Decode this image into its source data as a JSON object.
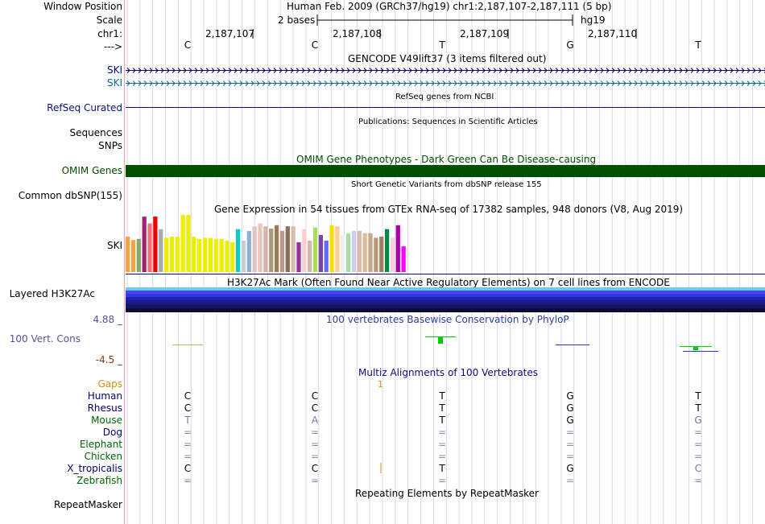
{
  "labels": {
    "window_position": "Window Position",
    "scale": "Scale",
    "chr": "chr1:",
    "strand": "--->",
    "ski1": "SKI",
    "ski2": "SKI",
    "refseq": "RefSeq Curated",
    "sequences": "Sequences",
    "snps": "SNPs",
    "omim": "OMIM Genes",
    "common_dbsnp": "Common dbSNP(155)",
    "gtex_ski": "SKI",
    "layered": "Layered H3K27Ac",
    "phylop_max": "4.88 _",
    "phylop_name": "100 Vert. Cons",
    "phylop_min": "-4.5 _",
    "repeatmasker": "RepeatMasker"
  },
  "header": {
    "assembly": "Human Feb. 2009 (GRCh37/hg19)   chr1:2,187,107-2,187,111 (5 bp)",
    "scale_text": "2 bases",
    "db": "hg19",
    "positions": [
      "2,187,107",
      "2,187,108",
      "2,187,109",
      "2,187,110"
    ],
    "bases": [
      "C",
      "C",
      "T",
      "G",
      "T"
    ]
  },
  "tracks": {
    "gencode": "GENCODE V49lift37 (3 items filtered out)",
    "refseq_title": "RefSeq genes from NCBI",
    "publications": "Publications: Sequences in Scientific Articles",
    "omim_title": "OMIM Gene Phenotypes - Dark Green Can Be Disease-causing",
    "dbsnp_title": "Short Genetic Variants from dbSNP release 155",
    "gtex_title": "Gene Expression in 54 tissues from GTEx RNA-seq of 17382 samples, 948 donors (V8, Aug 2019)",
    "h3k27_title": "H3K27Ac Mark (Often Found Near Active Regulatory Elements) on 7 cell lines from ENCODE",
    "phylop_title": "100 vertebrates Basewise Conservation by PhyloP",
    "multiz_title": "Multiz Alignments of 100 Vertebrates",
    "repeat_title": "Repeating Elements by RepeatMasker"
  },
  "gtex_bars": [
    {
      "v": 0.62,
      "c": "#F2A245"
    },
    {
      "v": 0.56,
      "c": "#F2A245"
    },
    {
      "v": 0.58,
      "c": "#89A86F"
    },
    {
      "v": 0.97,
      "c": "#A0226E"
    },
    {
      "v": 0.85,
      "c": "#F56F6F"
    },
    {
      "v": 0.97,
      "c": "#EE0000"
    },
    {
      "v": 0.75,
      "c": "#AAAAAA"
    },
    {
      "v": 0.6,
      "c": "#EEEE00"
    },
    {
      "v": 0.62,
      "c": "#EEEE00"
    },
    {
      "v": 0.62,
      "c": "#EEEE00"
    },
    {
      "v": 1.0,
      "c": "#EEEE00"
    },
    {
      "v": 1.0,
      "c": "#EEEE00"
    },
    {
      "v": 0.62,
      "c": "#EEEE00"
    },
    {
      "v": 0.58,
      "c": "#EEEE00"
    },
    {
      "v": 0.6,
      "c": "#EEEE00"
    },
    {
      "v": 0.6,
      "c": "#EEEE00"
    },
    {
      "v": 0.58,
      "c": "#EEEE00"
    },
    {
      "v": 0.58,
      "c": "#EEEE00"
    },
    {
      "v": 0.55,
      "c": "#EEEE00"
    },
    {
      "v": 0.52,
      "c": "#EEEE00"
    },
    {
      "v": 0.75,
      "c": "#00CCCC"
    },
    {
      "v": 0.55,
      "c": "#CCCCCC"
    },
    {
      "v": 0.72,
      "c": "#8FB0D6"
    },
    {
      "v": 0.8,
      "c": "#E0C8C0"
    },
    {
      "v": 0.85,
      "c": "#E8C4BC"
    },
    {
      "v": 0.8,
      "c": "#D8B0A8"
    },
    {
      "v": 0.76,
      "c": "#AA9977"
    },
    {
      "v": 0.82,
      "c": "#9C7A55"
    },
    {
      "v": 0.72,
      "c": "#BB9988"
    },
    {
      "v": 0.8,
      "c": "#8C6E50"
    },
    {
      "v": 0.8,
      "c": "#DDBBAA"
    },
    {
      "v": 0.52,
      "c": "#9B30A0"
    },
    {
      "v": 0.75,
      "c": "#FFCCCC"
    },
    {
      "v": 0.55,
      "c": "#CCBBAA"
    },
    {
      "v": 0.78,
      "c": "#AADD55"
    },
    {
      "v": 0.65,
      "c": "#7744AA"
    },
    {
      "v": 0.55,
      "c": "#6666FF"
    },
    {
      "v": 0.82,
      "c": "#FFDD00"
    },
    {
      "v": 0.8,
      "c": "#FFCC99"
    },
    {
      "v": 0.65,
      "c": "#EEEEEE"
    },
    {
      "v": 0.68,
      "c": "#AADDAA"
    },
    {
      "v": 0.72,
      "c": "#CCCCEE"
    },
    {
      "v": 0.72,
      "c": "#DDBBAA"
    },
    {
      "v": 0.68,
      "c": "#DDBB99"
    },
    {
      "v": 0.68,
      "c": "#C8A888"
    },
    {
      "v": 0.6,
      "c": "#BB9977"
    },
    {
      "v": 0.62,
      "c": "#A08060"
    },
    {
      "v": 0.75,
      "c": "#008844"
    },
    {
      "v": 0.6,
      "c": "#FFCCDD"
    },
    {
      "v": 0.82,
      "c": "#AA00AA"
    },
    {
      "v": 0.45,
      "c": "#FF00FF"
    }
  ],
  "multiz": {
    "gaps_label": "Gaps",
    "gaps_mark": "1",
    "species": [
      {
        "name": "Human",
        "color": "#000066",
        "bases": [
          "C",
          "C",
          "T",
          "G",
          "T"
        ],
        "base_colors": [
          "#000",
          "#000",
          "#000",
          "#000",
          "#000"
        ]
      },
      {
        "name": "Rhesus",
        "color": "#000066",
        "bases": [
          "C",
          "C",
          "T",
          "G",
          "T"
        ],
        "base_colors": [
          "#000",
          "#000",
          "#000",
          "#000",
          "#000"
        ]
      },
      {
        "name": "Mouse",
        "color": "#006600",
        "bases": [
          "T",
          "A",
          "T",
          "G",
          "G"
        ],
        "base_colors": [
          "#7777AA",
          "#7777AA",
          "#000",
          "#000",
          "#7777AA"
        ]
      },
      {
        "name": "Dog",
        "color": "#000066",
        "bases": [
          "=",
          "=",
          "=",
          "=",
          "="
        ],
        "base_colors": [
          "#8888AA",
          "#8888AA",
          "#8888AA",
          "#8888AA",
          "#8888AA"
        ]
      },
      {
        "name": "Elephant",
        "color": "#006600",
        "bases": [
          "=",
          "=",
          "=",
          "=",
          "="
        ],
        "base_colors": [
          "#8888AA",
          "#8888AA",
          "#8888AA",
          "#8888AA",
          "#8888AA"
        ]
      },
      {
        "name": "Chicken",
        "color": "#006600",
        "bases": [
          "=",
          "=",
          "=",
          "=",
          "="
        ],
        "base_colors": [
          "#8888AA",
          "#8888AA",
          "#8888AA",
          "#8888AA",
          "#8888AA"
        ]
      },
      {
        "name": "X_tropicalis",
        "color": "#000066",
        "bases": [
          "C",
          "C",
          "T",
          "G",
          "C"
        ],
        "base_colors": [
          "#000",
          "#000",
          "#000",
          "#000",
          "#7777AA"
        ]
      },
      {
        "name": "Zebrafish",
        "color": "#006600",
        "bases": [
          "=",
          "=",
          "=",
          "=",
          "="
        ],
        "base_colors": [
          "#8888AA",
          "#8888AA",
          "#8888AA",
          "#8888AA",
          "#8888AA"
        ]
      }
    ]
  },
  "colors": {
    "omim": "#005000",
    "gencode": "#000080",
    "gencode2": "#0B6E8C",
    "phylop_pos": "#00CC00",
    "phylop_neg": "#3333CC",
    "gaps": "#D89000"
  }
}
